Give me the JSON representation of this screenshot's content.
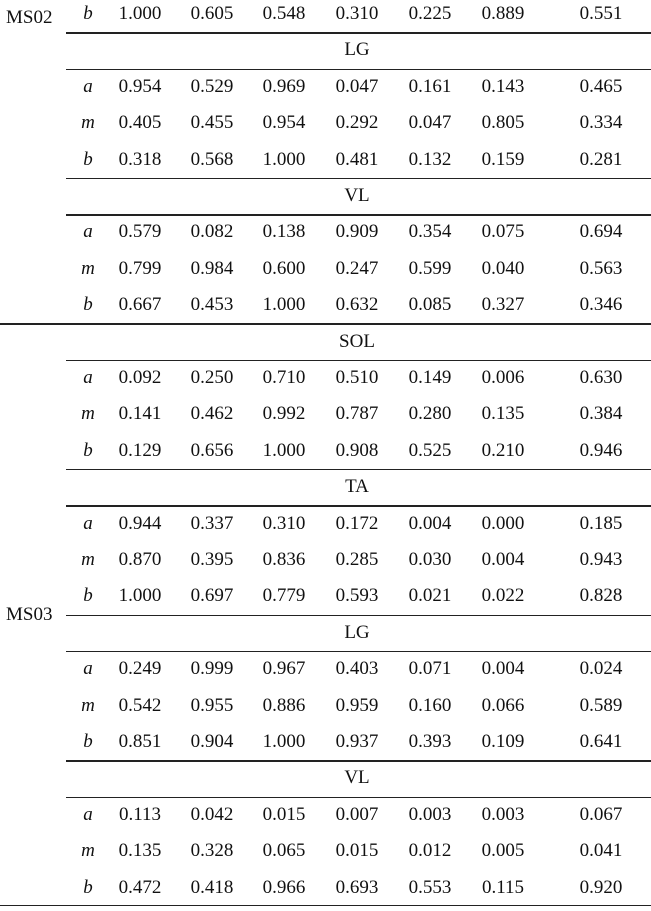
{
  "table": {
    "rows": [
      {
        "kind": "data",
        "param": "b",
        "values": [
          "1.000",
          "0.605",
          "0.548",
          "0.310",
          "0.225",
          "0.889",
          "0.551"
        ]
      },
      {
        "kind": "muscle",
        "label": "LG"
      },
      {
        "kind": "data",
        "param": "a",
        "values": [
          "0.954",
          "0.529",
          "0.969",
          "0.047",
          "0.161",
          "0.143",
          "0.465"
        ]
      },
      {
        "kind": "data",
        "param": "m",
        "values": [
          "0.405",
          "0.455",
          "0.954",
          "0.292",
          "0.047",
          "0.805",
          "0.334"
        ]
      },
      {
        "kind": "data",
        "param": "b",
        "values": [
          "0.318",
          "0.568",
          "1.000",
          "0.481",
          "0.132",
          "0.159",
          "0.281"
        ]
      },
      {
        "kind": "muscle",
        "label": "VL"
      },
      {
        "kind": "data",
        "param": "a",
        "values": [
          "0.579",
          "0.082",
          "0.138",
          "0.909",
          "0.354",
          "0.075",
          "0.694"
        ]
      },
      {
        "kind": "data",
        "param": "m",
        "values": [
          "0.799",
          "0.984",
          "0.600",
          "0.247",
          "0.599",
          "0.040",
          "0.563"
        ]
      },
      {
        "kind": "data",
        "param": "b",
        "values": [
          "0.667",
          "0.453",
          "1.000",
          "0.632",
          "0.085",
          "0.327",
          "0.346"
        ]
      },
      {
        "kind": "muscle",
        "label": "SOL"
      },
      {
        "kind": "data",
        "param": "a",
        "values": [
          "0.092",
          "0.250",
          "0.710",
          "0.510",
          "0.149",
          "0.006",
          "0.630"
        ]
      },
      {
        "kind": "data",
        "param": "m",
        "values": [
          "0.141",
          "0.462",
          "0.992",
          "0.787",
          "0.280",
          "0.135",
          "0.384"
        ]
      },
      {
        "kind": "data",
        "param": "b",
        "values": [
          "0.129",
          "0.656",
          "1.000",
          "0.908",
          "0.525",
          "0.210",
          "0.946"
        ]
      },
      {
        "kind": "muscle",
        "label": "TA"
      },
      {
        "kind": "data",
        "param": "a",
        "values": [
          "0.944",
          "0.337",
          "0.310",
          "0.172",
          "0.004",
          "0.000",
          "0.185"
        ]
      },
      {
        "kind": "data",
        "param": "m",
        "values": [
          "0.870",
          "0.395",
          "0.836",
          "0.285",
          "0.030",
          "0.004",
          "0.943"
        ]
      },
      {
        "kind": "data",
        "param": "b",
        "values": [
          "1.000",
          "0.697",
          "0.779",
          "0.593",
          "0.021",
          "0.022",
          "0.828"
        ]
      },
      {
        "kind": "muscle",
        "label": "LG"
      },
      {
        "kind": "data",
        "param": "a",
        "values": [
          "0.249",
          "0.999",
          "0.967",
          "0.403",
          "0.071",
          "0.004",
          "0.024"
        ]
      },
      {
        "kind": "data",
        "param": "m",
        "values": [
          "0.542",
          "0.955",
          "0.886",
          "0.959",
          "0.160",
          "0.066",
          "0.589"
        ]
      },
      {
        "kind": "data",
        "param": "b",
        "values": [
          "0.851",
          "0.904",
          "1.000",
          "0.937",
          "0.393",
          "0.109",
          "0.641"
        ]
      },
      {
        "kind": "muscle",
        "label": "VL"
      },
      {
        "kind": "data",
        "param": "a",
        "values": [
          "0.113",
          "0.042",
          "0.015",
          "0.007",
          "0.003",
          "0.003",
          "0.067"
        ]
      },
      {
        "kind": "data",
        "param": "m",
        "values": [
          "0.135",
          "0.328",
          "0.065",
          "0.015",
          "0.012",
          "0.005",
          "0.041"
        ]
      },
      {
        "kind": "data",
        "param": "b",
        "values": [
          "0.472",
          "0.418",
          "0.966",
          "0.693",
          "0.553",
          "0.115",
          "0.920"
        ]
      }
    ],
    "subjects": [
      {
        "label": "MS02",
        "first_row": 0,
        "last_row": 8
      },
      {
        "label": "MS03",
        "first_row": 9,
        "last_row": 24
      }
    ]
  }
}
